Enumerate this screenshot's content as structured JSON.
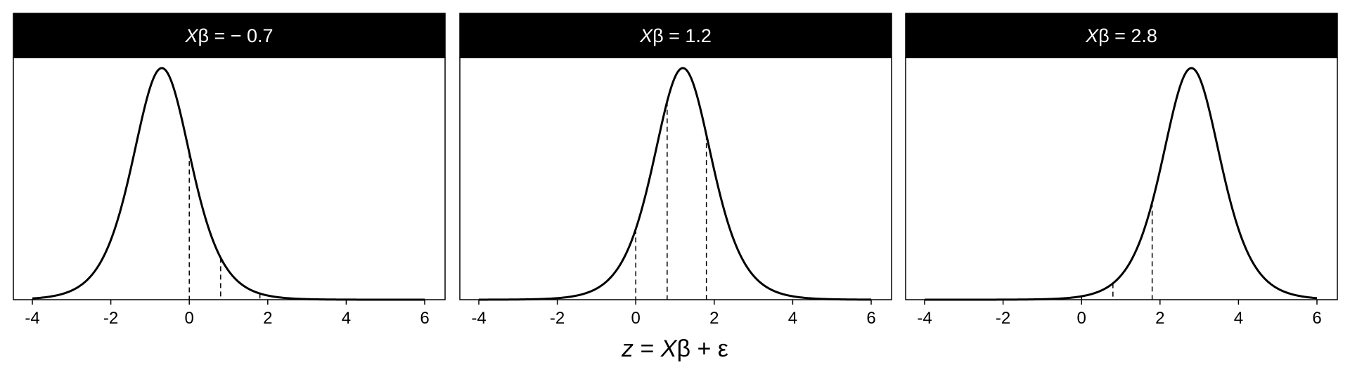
{
  "chart_data": {
    "type": "line",
    "xlabel": {
      "parts": [
        "z",
        " = ",
        "X",
        "β + ε"
      ]
    },
    "xlim": [
      -4,
      6
    ],
    "xticks": [
      -4,
      -2,
      0,
      2,
      4,
      6
    ],
    "xtick_labels": [
      "-4",
      "-2",
      "0",
      "2",
      "4",
      "6"
    ],
    "distribution": {
      "family": "logistic",
      "scale": 0.5
    },
    "thresholds": [
      0,
      0.8,
      1.8
    ],
    "grid": false,
    "legend": "none",
    "colors": {
      "curve": "#000000",
      "strip_bg": "#000000",
      "strip_text": "#ffffff",
      "panel_bg": "#ffffff"
    },
    "panels": [
      {
        "label_var": "X",
        "label_rest": "β = − 0.7",
        "mean": -0.7
      },
      {
        "label_var": "X",
        "label_rest": "β = 1.2",
        "mean": 1.2
      },
      {
        "label_var": "X",
        "label_rest": "β = 2.8",
        "mean": 2.8
      }
    ]
  }
}
